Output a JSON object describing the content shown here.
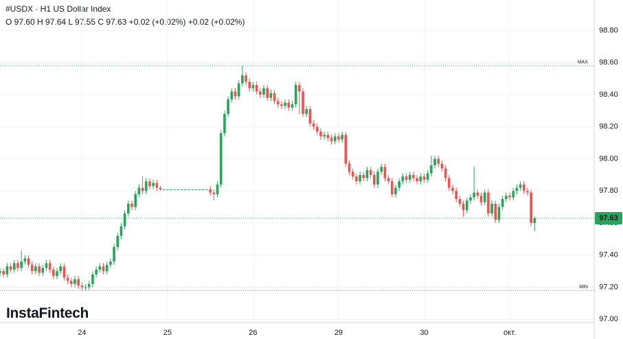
{
  "chart_data": {
    "type": "candlestick",
    "symbol": "#USDX · H1 US Dollar Index",
    "ohlc_text": "O 97.60 H 97.64 L 97.55 C 97.63 +0.02 (+0.02%) +0.02 (+0.02%)",
    "brand": "InstaFintech",
    "up_color": "#26a65b",
    "down_color": "#ef5350",
    "xlim": [
      0,
      166.7
    ],
    "ylim": [
      96.98,
      98.99
    ],
    "xticks": [
      {
        "value": 23,
        "label": "24"
      },
      {
        "value": 47,
        "label": "25"
      },
      {
        "value": 71,
        "label": "26"
      },
      {
        "value": 95,
        "label": "29"
      },
      {
        "value": 119,
        "label": "30"
      },
      {
        "value": 143,
        "label": "окт."
      }
    ],
    "yticks": [
      {
        "value": 97.0,
        "label": "97.00"
      },
      {
        "value": 97.2,
        "label": "97.20"
      },
      {
        "value": 97.4,
        "label": "97.40"
      },
      {
        "value": 97.6,
        "label": "97.60"
      },
      {
        "value": 97.8,
        "label": "97.80"
      },
      {
        "value": 98.0,
        "label": "98.00"
      },
      {
        "value": 98.2,
        "label": "98.20"
      },
      {
        "value": 98.4,
        "label": "98.40"
      },
      {
        "value": 98.6,
        "label": "98.60"
      },
      {
        "value": 98.8,
        "label": "98.80"
      }
    ],
    "grid": true,
    "max_line": {
      "value": 98.58,
      "label": "MAX"
    },
    "min_line": {
      "value": 97.18,
      "label": "MIN"
    },
    "last_price": {
      "value": 97.63,
      "label": "97.63"
    },
    "open": [
      97.29,
      97.3,
      97.28,
      97.33,
      97.31,
      97.35,
      97.32,
      97.36,
      97.38,
      97.34,
      97.3,
      97.33,
      97.29,
      97.32,
      97.35,
      97.31,
      97.27,
      97.3,
      97.33,
      97.26,
      97.24,
      97.22,
      97.25,
      97.21,
      97.2,
      97.2,
      97.22,
      97.28,
      97.31,
      97.33,
      97.3,
      97.34,
      97.36,
      97.45,
      97.52,
      97.58,
      97.66,
      97.72,
      97.7,
      97.78,
      97.82,
      97.8,
      97.86,
      97.83,
      97.85,
      97.82,
      97.81,
      97.81,
      97.81,
      97.81,
      97.81,
      97.81,
      97.81,
      97.81,
      97.81,
      97.81,
      97.81,
      97.81,
      97.81,
      97.81,
      97.79,
      97.78,
      97.84,
      98.16,
      98.28,
      98.37,
      98.42,
      98.39,
      98.47,
      98.52,
      98.48,
      98.44,
      98.46,
      98.42,
      98.4,
      98.44,
      98.38,
      98.41,
      98.36,
      98.34,
      98.33,
      98.35,
      98.32,
      98.34,
      98.46,
      98.42,
      98.28,
      98.31,
      98.22,
      98.2,
      98.17,
      98.14,
      98.15,
      98.13,
      98.11,
      98.14,
      98.12,
      98.15,
      97.97,
      97.92,
      97.89,
      97.86,
      97.9,
      97.88,
      97.93,
      97.9,
      97.84,
      97.92,
      97.95,
      97.88,
      97.86,
      97.78,
      97.82,
      97.86,
      97.89,
      97.87,
      97.9,
      97.88,
      97.86,
      97.89,
      97.87,
      97.91,
      97.96,
      98.0,
      97.97,
      97.94,
      97.88,
      97.82,
      97.8,
      97.75,
      97.72,
      97.68,
      97.74,
      97.76,
      97.79,
      97.77,
      97.73,
      97.79,
      97.66,
      97.72,
      97.62,
      97.7,
      97.75,
      97.77,
      97.76,
      97.8,
      97.82,
      97.84,
      97.8,
      97.79,
      97.6
    ],
    "high": [
      97.32,
      97.32,
      97.35,
      97.35,
      97.37,
      97.37,
      97.43,
      97.4,
      97.4,
      97.36,
      97.35,
      97.35,
      97.34,
      97.37,
      97.37,
      97.33,
      97.32,
      97.35,
      97.35,
      97.28,
      97.26,
      97.27,
      97.27,
      97.23,
      97.22,
      97.24,
      97.3,
      97.33,
      97.35,
      97.35,
      97.36,
      97.38,
      97.47,
      97.54,
      97.6,
      97.68,
      97.74,
      97.74,
      97.8,
      97.84,
      97.89,
      97.88,
      97.88,
      97.87,
      97.87,
      97.83,
      97.81,
      97.81,
      97.81,
      97.81,
      97.81,
      97.81,
      97.81,
      97.81,
      97.81,
      97.81,
      97.81,
      97.81,
      97.81,
      97.83,
      97.81,
      97.86,
      98.18,
      98.3,
      98.39,
      98.44,
      98.44,
      98.49,
      98.58,
      98.54,
      98.5,
      98.48,
      98.48,
      98.44,
      98.46,
      98.46,
      98.43,
      98.43,
      98.38,
      98.36,
      98.37,
      98.37,
      98.36,
      98.48,
      98.48,
      98.44,
      98.33,
      98.33,
      98.24,
      98.22,
      98.19,
      98.17,
      98.17,
      98.15,
      98.16,
      98.16,
      98.17,
      98.17,
      97.99,
      97.94,
      97.91,
      97.92,
      97.92,
      97.95,
      97.95,
      97.92,
      97.94,
      97.97,
      97.97,
      97.9,
      97.88,
      97.84,
      97.88,
      97.91,
      97.91,
      97.92,
      97.92,
      97.9,
      97.91,
      97.91,
      97.93,
      98.02,
      98.02,
      98.02,
      97.99,
      97.96,
      97.9,
      97.84,
      97.82,
      97.77,
      97.74,
      97.76,
      97.78,
      97.95,
      97.81,
      97.79,
      97.81,
      97.81,
      97.74,
      97.74,
      97.72,
      97.77,
      97.79,
      97.79,
      97.82,
      97.84,
      97.86,
      97.86,
      97.82,
      97.81,
      97.64
    ],
    "low": [
      97.27,
      97.26,
      97.26,
      97.29,
      97.29,
      97.3,
      97.3,
      97.34,
      97.32,
      97.28,
      97.28,
      97.27,
      97.27,
      97.3,
      97.29,
      97.25,
      97.25,
      97.28,
      97.24,
      97.22,
      97.2,
      97.2,
      97.19,
      97.18,
      97.18,
      97.18,
      97.2,
      97.26,
      97.29,
      97.28,
      97.28,
      97.32,
      97.34,
      97.43,
      97.5,
      97.56,
      97.64,
      97.68,
      97.68,
      97.76,
      97.78,
      97.78,
      97.81,
      97.81,
      97.8,
      97.8,
      97.81,
      97.81,
      97.81,
      97.81,
      97.81,
      97.81,
      97.81,
      97.81,
      97.81,
      97.81,
      97.81,
      97.81,
      97.81,
      97.77,
      97.74,
      97.76,
      97.82,
      98.14,
      98.26,
      98.35,
      98.37,
      98.37,
      98.45,
      98.46,
      98.42,
      98.42,
      98.4,
      98.38,
      98.38,
      98.36,
      98.36,
      98.34,
      98.32,
      98.31,
      98.31,
      98.3,
      98.3,
      98.32,
      98.28,
      98.26,
      98.26,
      98.2,
      98.18,
      98.15,
      98.12,
      98.12,
      98.11,
      98.09,
      98.09,
      98.1,
      98.1,
      97.95,
      97.9,
      97.87,
      97.84,
      97.84,
      97.86,
      97.86,
      97.88,
      97.82,
      97.82,
      97.9,
      97.86,
      97.84,
      97.76,
      97.76,
      97.8,
      97.84,
      97.85,
      97.85,
      97.86,
      97.84,
      97.84,
      97.85,
      97.85,
      97.89,
      97.94,
      97.95,
      97.92,
      97.86,
      97.8,
      97.78,
      97.73,
      97.7,
      97.64,
      97.66,
      97.72,
      97.74,
      97.75,
      97.71,
      97.71,
      97.64,
      97.64,
      97.6,
      97.6,
      97.68,
      97.73,
      97.74,
      97.74,
      97.78,
      97.8,
      97.78,
      97.77,
      97.58,
      97.55
    ],
    "close": [
      97.3,
      97.28,
      97.33,
      97.31,
      97.35,
      97.32,
      97.36,
      97.38,
      97.34,
      97.3,
      97.33,
      97.29,
      97.32,
      97.35,
      97.31,
      97.27,
      97.3,
      97.33,
      97.26,
      97.24,
      97.22,
      97.25,
      97.21,
      97.2,
      97.2,
      97.22,
      97.28,
      97.31,
      97.33,
      97.3,
      97.34,
      97.36,
      97.45,
      97.52,
      97.58,
      97.66,
      97.72,
      97.7,
      97.78,
      97.82,
      97.8,
      97.86,
      97.83,
      97.85,
      97.82,
      97.81,
      97.81,
      97.81,
      97.81,
      97.81,
      97.81,
      97.81,
      97.81,
      97.81,
      97.81,
      97.81,
      97.81,
      97.81,
      97.81,
      97.79,
      97.78,
      97.84,
      98.16,
      98.28,
      98.37,
      98.42,
      98.39,
      98.47,
      98.52,
      98.48,
      98.44,
      98.46,
      98.42,
      98.4,
      98.44,
      98.38,
      98.41,
      98.36,
      98.34,
      98.33,
      98.35,
      98.32,
      98.34,
      98.46,
      98.42,
      98.28,
      98.31,
      98.22,
      98.2,
      98.17,
      98.14,
      98.15,
      98.13,
      98.11,
      98.14,
      98.12,
      98.15,
      97.97,
      97.92,
      97.89,
      97.86,
      97.9,
      97.88,
      97.93,
      97.9,
      97.84,
      97.92,
      97.95,
      97.88,
      97.86,
      97.78,
      97.82,
      97.86,
      97.89,
      97.87,
      97.9,
      97.88,
      97.86,
      97.89,
      97.87,
      97.91,
      97.96,
      98.0,
      97.97,
      97.94,
      97.88,
      97.82,
      97.8,
      97.75,
      97.72,
      97.68,
      97.74,
      97.76,
      97.79,
      97.77,
      97.73,
      97.79,
      97.66,
      97.72,
      97.62,
      97.7,
      97.75,
      97.77,
      97.76,
      97.8,
      97.82,
      97.84,
      97.8,
      97.79,
      97.6,
      97.63
    ]
  }
}
